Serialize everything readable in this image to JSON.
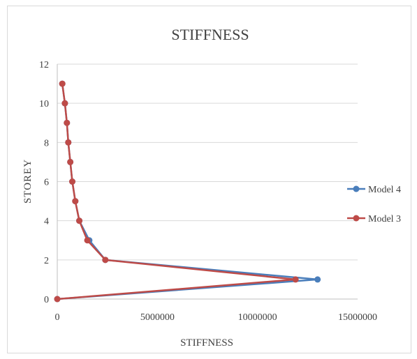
{
  "chart_data": {
    "type": "line",
    "title": "STIFFNESS",
    "xlabel": "STIFFNESS",
    "ylabel": "STOREY",
    "xlim": [
      0,
      15000000
    ],
    "ylim": [
      0,
      12
    ],
    "x_ticks": [
      0,
      5000000,
      10000000,
      15000000
    ],
    "y_ticks": [
      0,
      2,
      4,
      6,
      8,
      10,
      12
    ],
    "x_tick_labels": [
      "0",
      "5000000",
      "10000000",
      "15000000"
    ],
    "y_tick_labels": [
      "0",
      "2",
      "4",
      "6",
      "8",
      "10",
      "12"
    ],
    "grid": "horizontal",
    "legend_position": "right",
    "series": [
      {
        "name": "Model 4",
        "color": "#4a7ebb",
        "points": [
          {
            "x": 0,
            "y": 0
          },
          {
            "x": 13000000,
            "y": 1
          },
          {
            "x": 2400000,
            "y": 2
          },
          {
            "x": 1600000,
            "y": 3
          },
          {
            "x": 1100000,
            "y": 4
          },
          {
            "x": 900000,
            "y": 5
          },
          {
            "x": 750000,
            "y": 6
          },
          {
            "x": 650000,
            "y": 7
          },
          {
            "x": 550000,
            "y": 8
          },
          {
            "x": 480000,
            "y": 9
          },
          {
            "x": 380000,
            "y": 10
          },
          {
            "x": 250000,
            "y": 11
          }
        ]
      },
      {
        "name": "Model 3",
        "color": "#be4b48",
        "points": [
          {
            "x": 0,
            "y": 0
          },
          {
            "x": 11900000,
            "y": 1
          },
          {
            "x": 2400000,
            "y": 2
          },
          {
            "x": 1500000,
            "y": 3
          },
          {
            "x": 1100000,
            "y": 4
          },
          {
            "x": 900000,
            "y": 5
          },
          {
            "x": 750000,
            "y": 6
          },
          {
            "x": 650000,
            "y": 7
          },
          {
            "x": 550000,
            "y": 8
          },
          {
            "x": 480000,
            "y": 9
          },
          {
            "x": 380000,
            "y": 10
          },
          {
            "x": 250000,
            "y": 11
          }
        ]
      }
    ]
  }
}
